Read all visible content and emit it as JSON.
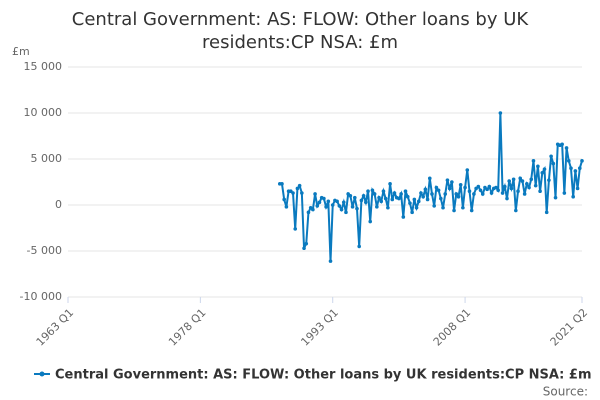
{
  "chart_data": {
    "type": "line",
    "title": "Central Government: AS: FLOW: Other loans by UK residents:CP NSA: £m",
    "y_axis_label": "£m",
    "source": "Source:",
    "categories": [
      "1963 Q1",
      null,
      null,
      null,
      null,
      null,
      null,
      null,
      null,
      null,
      null,
      null,
      null,
      null,
      null,
      null,
      null,
      null,
      null,
      null,
      null,
      null,
      null,
      null,
      null,
      null,
      null,
      null,
      null,
      null,
      null,
      null,
      null,
      null,
      null,
      null,
      null,
      null,
      null,
      null,
      null,
      null,
      null,
      null,
      null,
      null,
      null,
      null,
      null,
      null,
      null,
      null,
      null,
      null,
      null,
      null,
      null,
      null,
      null,
      null,
      "1978 Q1",
      null,
      null,
      null,
      null,
      null,
      null,
      null,
      null,
      null,
      null,
      null,
      null,
      null,
      null,
      null,
      null,
      null,
      null,
      null,
      null,
      null,
      null,
      null,
      null,
      null,
      null,
      null,
      null,
      null,
      null,
      null,
      null,
      null,
      null,
      null,
      null,
      null,
      null,
      null,
      null,
      null,
      null,
      null,
      null,
      null,
      null,
      null,
      null,
      null,
      null,
      null,
      null,
      null,
      null,
      null,
      null,
      null,
      null,
      null,
      "1993 Q1",
      null,
      null,
      null,
      null,
      null,
      null,
      null,
      null,
      null,
      null,
      null,
      null,
      null,
      null,
      null,
      null,
      null,
      null,
      null,
      null,
      null,
      null,
      null,
      null,
      null,
      null,
      null,
      null,
      null,
      null,
      null,
      null,
      null,
      null,
      null,
      null,
      null,
      null,
      null,
      null,
      null,
      null,
      null,
      null,
      null,
      null,
      null,
      null,
      null,
      null,
      null,
      null,
      null,
      null,
      null,
      null,
      null,
      null,
      null,
      "2008 Q1",
      null,
      null,
      null,
      null,
      null,
      null,
      null,
      null,
      null,
      null,
      null,
      null,
      null,
      null,
      null,
      null,
      null,
      null,
      null,
      null,
      null,
      null,
      null,
      null,
      null,
      null,
      null,
      null,
      null,
      null,
      null,
      null,
      null,
      null,
      null,
      null,
      null,
      null,
      null,
      null,
      null,
      null,
      null,
      null,
      null,
      null,
      null,
      null,
      null,
      null,
      null,
      null,
      "2021 Q2"
    ],
    "series": [
      {
        "name": "Central Government: AS: FLOW: Other loans by UK residents:CP NSA: £m",
        "color": "#0a7abf",
        "values": [
          null,
          null,
          null,
          null,
          null,
          null,
          null,
          null,
          null,
          null,
          null,
          null,
          null,
          null,
          null,
          null,
          null,
          null,
          null,
          null,
          null,
          null,
          null,
          null,
          null,
          null,
          null,
          null,
          null,
          null,
          null,
          null,
          null,
          null,
          null,
          null,
          null,
          null,
          null,
          null,
          null,
          null,
          null,
          null,
          null,
          null,
          null,
          null,
          null,
          null,
          null,
          null,
          null,
          null,
          null,
          null,
          null,
          null,
          null,
          null,
          null,
          null,
          null,
          null,
          null,
          null,
          null,
          null,
          null,
          null,
          null,
          null,
          null,
          null,
          null,
          null,
          null,
          null,
          null,
          null,
          null,
          null,
          null,
          null,
          null,
          null,
          null,
          null,
          null,
          null,
          null,
          null,
          null,
          null,
          null,
          null,
          2300,
          2300,
          600,
          -200,
          1500,
          1500,
          1300,
          -2600,
          1800,
          2100,
          1300,
          -4700,
          -4200,
          -800,
          -300,
          -500,
          1200,
          -100,
          300,
          800,
          700,
          -200,
          400,
          -6100,
          0,
          500,
          400,
          -100,
          -500,
          300,
          -800,
          1200,
          1000,
          -200,
          800,
          -400,
          -4500,
          500,
          1000,
          300,
          1500,
          -1800,
          1600,
          1200,
          -200,
          800,
          400,
          1500,
          700,
          -300,
          2300,
          600,
          1300,
          800,
          700,
          1200,
          -1300,
          1500,
          900,
          200,
          -800,
          600,
          -300,
          400,
          1300,
          900,
          1700,
          600,
          2900,
          1200,
          -100,
          1900,
          1600,
          700,
          -300,
          1200,
          2700,
          1800,
          2500,
          -600,
          1200,
          900,
          2200,
          -300,
          1900,
          3800,
          1500,
          -600,
          1200,
          1800,
          2000,
          1600,
          1200,
          1900,
          1700,
          2000,
          1300,
          1800,
          1900,
          1600,
          10000,
          1300,
          2000,
          700,
          2600,
          1800,
          2800,
          -600,
          1500,
          2900,
          2600,
          1200,
          2300,
          1900,
          2800,
          4800,
          2100,
          4200,
          1500,
          3500,
          3900,
          -800,
          2700,
          5300,
          4500,
          800,
          6600,
          6500,
          6600,
          1300,
          6200,
          4800,
          4000,
          900,
          3700,
          1800,
          4000,
          4800
        ]
      }
    ],
    "ylim": [
      -10000,
      15000
    ],
    "yticks": [
      {
        "value": -10000,
        "label": "-10 000"
      },
      {
        "value": -5000,
        "label": "-5 000"
      },
      0,
      {
        "value": 5000,
        "label": "5 000"
      },
      {
        "value": 10000,
        "label": "10 000"
      },
      {
        "value": 15000,
        "label": "15 000"
      }
    ],
    "grid": true
  }
}
